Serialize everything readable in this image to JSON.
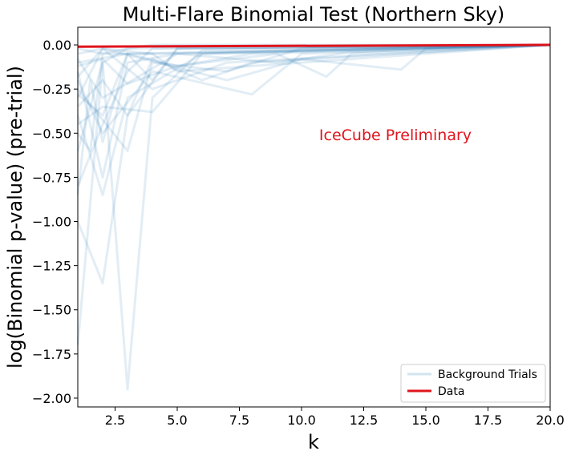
{
  "chart_data": {
    "type": "line",
    "title": "Multi-Flare Binomial Test (Northern Sky)",
    "xlabel": "k",
    "ylabel": "log(Binomial p-value) (pre-trial)",
    "xlim": [
      1,
      20
    ],
    "ylim": [
      -2.05,
      0.1
    ],
    "xticks": [
      2.5,
      5.0,
      7.5,
      10.0,
      12.5,
      15.0,
      17.5,
      20.0
    ],
    "xtick_labels": [
      "2.5",
      "5.0",
      "7.5",
      "10.0",
      "12.5",
      "15.0",
      "17.5",
      "20.0"
    ],
    "yticks": [
      0.0,
      -0.25,
      -0.5,
      -0.75,
      -1.0,
      -1.25,
      -1.5,
      -1.75,
      -2.0
    ],
    "ytick_labels": [
      "0.00",
      "−0.25",
      "−0.50",
      "−0.75",
      "−1.00",
      "−1.25",
      "−1.50",
      "−1.75",
      "−2.00"
    ],
    "annotation": "IceCube Preliminary",
    "legend_position": "bottom-right",
    "colors": {
      "background": "#1f77b4",
      "data": "#e0141c",
      "annotation": "#e0141c"
    },
    "series": [
      {
        "name": "Data",
        "x": [
          1,
          20
        ],
        "y": [
          -0.01,
          0.0
        ]
      },
      {
        "name": "Background Trials",
        "lines": [
          {
            "x": [
              1,
              2,
              3,
              4,
              20
            ],
            "y": [
              -1.7,
              -0.1,
              -0.02,
              0.0,
              0.0
            ]
          },
          {
            "x": [
              1,
              2,
              3,
              5,
              20
            ],
            "y": [
              -1.0,
              -1.35,
              -0.4,
              -0.02,
              0.0
            ]
          },
          {
            "x": [
              1,
              2,
              3,
              4,
              6,
              20
            ],
            "y": [
              -0.6,
              -0.1,
              -1.95,
              -0.3,
              -0.03,
              0.0
            ]
          },
          {
            "x": [
              1,
              2,
              3,
              6,
              20
            ],
            "y": [
              -0.4,
              -0.85,
              -0.3,
              -0.05,
              0.0
            ]
          },
          {
            "x": [
              1,
              2,
              4,
              7,
              20
            ],
            "y": [
              -0.3,
              -0.02,
              -0.25,
              -0.1,
              0.0
            ]
          },
          {
            "x": [
              1,
              2,
              4,
              8,
              10,
              20
            ],
            "y": [
              -0.2,
              -0.5,
              -0.15,
              -0.28,
              -0.05,
              0.0
            ]
          },
          {
            "x": [
              1,
              3,
              5,
              9,
              11,
              12,
              20
            ],
            "y": [
              -0.1,
              -0.05,
              -0.12,
              -0.05,
              -0.18,
              -0.05,
              0.0
            ]
          },
          {
            "x": [
              1,
              2,
              7,
              10,
              14,
              15,
              20
            ],
            "y": [
              -0.05,
              -0.02,
              -0.2,
              -0.08,
              -0.14,
              -0.02,
              0.0
            ]
          },
          {
            "x": [
              1,
              2,
              3,
              5,
              20
            ],
            "y": [
              -0.15,
              -0.75,
              -0.1,
              -0.05,
              0.0
            ]
          },
          {
            "x": [
              1,
              1.5,
              2,
              4,
              20
            ],
            "y": [
              -0.5,
              -0.6,
              -0.05,
              -0.05,
              0.0
            ]
          },
          {
            "x": [
              1,
              2,
              3,
              4,
              6,
              8,
              20
            ],
            "y": [
              -0.35,
              -0.2,
              -0.4,
              -0.08,
              -0.2,
              -0.1,
              0.0
            ]
          },
          {
            "x": [
              1,
              2,
              3,
              4,
              20
            ],
            "y": [
              -0.8,
              -0.45,
              -0.15,
              -0.02,
              0.0
            ]
          },
          {
            "x": [
              1,
              2,
              5,
              9,
              12,
              20
            ],
            "y": [
              -0.08,
              -0.3,
              -0.05,
              -0.1,
              -0.04,
              0.0
            ]
          },
          {
            "x": [
              1,
              3,
              4,
              7,
              10,
              20
            ],
            "y": [
              -0.25,
              -0.6,
              -0.1,
              -0.15,
              -0.02,
              0.0
            ]
          },
          {
            "x": [
              1,
              2,
              4,
              6,
              20
            ],
            "y": [
              -0.45,
              -0.35,
              -0.38,
              -0.05,
              0.0
            ]
          },
          {
            "x": [
              1,
              2,
              3,
              20
            ],
            "y": [
              -0.02,
              -0.05,
              -0.02,
              0.0
            ]
          },
          {
            "x": [
              1,
              2,
              3,
              5,
              8,
              20
            ],
            "y": [
              -0.12,
              -0.08,
              -0.22,
              -0.12,
              -0.05,
              0.0
            ]
          },
          {
            "x": [
              1,
              1.5,
              2,
              3,
              20
            ],
            "y": [
              -0.85,
              -0.2,
              -0.55,
              -0.05,
              0.0
            ]
          },
          {
            "x": [
              1,
              2,
              4,
              5,
              20
            ],
            "y": [
              -0.18,
              -0.02,
              -0.05,
              -0.15,
              0.0
            ]
          },
          {
            "x": [
              1,
              2,
              3,
              4,
              5,
              20
            ],
            "y": [
              -0.28,
              -0.4,
              -0.05,
              -0.2,
              -0.02,
              0.0
            ]
          }
        ]
      }
    ]
  }
}
